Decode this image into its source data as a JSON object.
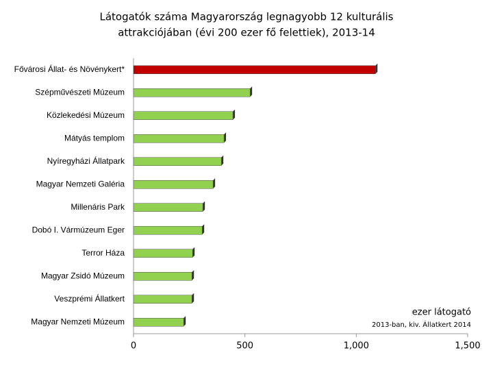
{
  "chart_data": {
    "type": "bar",
    "orientation": "horizontal",
    "title": "Látogatók száma Magyarország legnagyobb 12 kulturális attrakciójában (évi 200 ezer fő felettiek), 2013-14",
    "categories": [
      "Fővárosi Állat- és Növénykert*",
      "Szépművészeti Múzeum",
      "Közlekedési Múzeum",
      "Mátyás templom",
      "Nyíregyházi Állatpark",
      "Magyar Nemzeti Galéria",
      "Millenáris Park",
      "Dobó I. Vármúzeum Eger",
      "Terror Háza",
      "Magyar Zsidó Múzeum",
      "Veszprémi Állatkert",
      "Magyar Nemzeti Múzeum"
    ],
    "values": [
      1086,
      523,
      446,
      406,
      394,
      357,
      311,
      308,
      265,
      262,
      262,
      225
    ],
    "colors": [
      "#c00000",
      "#92d050",
      "#92d050",
      "#92d050",
      "#92d050",
      "#92d050",
      "#92d050",
      "#92d050",
      "#92d050",
      "#92d050",
      "#92d050",
      "#92d050"
    ],
    "xlim": [
      0,
      1500
    ],
    "xticks": [
      0,
      500,
      {
        "value": 1000,
        "label": "1,000"
      },
      {
        "value": 1500,
        "label": "1,500"
      }
    ],
    "annotations": [
      "ezer látogató",
      "2013-ban, kiv. Állatkert 2014"
    ]
  }
}
